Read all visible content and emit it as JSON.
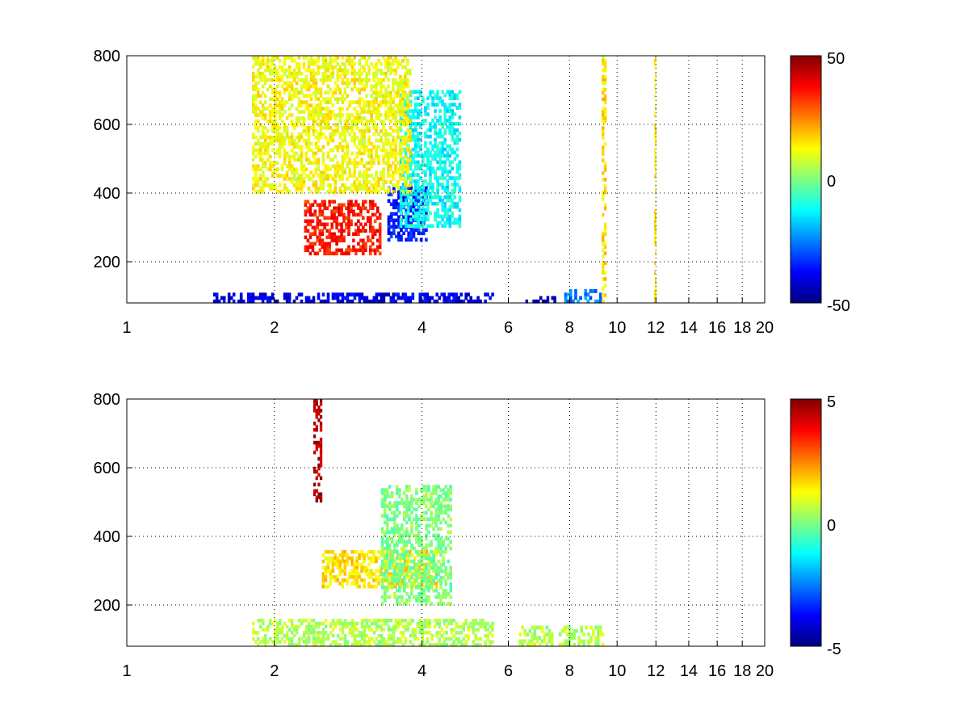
{
  "chart_data": [
    {
      "type": "heatmap",
      "title": "",
      "xlabel": "",
      "ylabel": "",
      "x_scale": "log",
      "xlim": [
        1,
        20
      ],
      "ylim": [
        80,
        800
      ],
      "x_ticks": [
        1,
        2,
        4,
        6,
        8,
        10,
        12,
        14,
        16,
        18,
        20
      ],
      "x_tick_labels": [
        "1",
        "2",
        "4",
        "6",
        "8",
        "10",
        "12",
        "14",
        "16",
        "18",
        "20"
      ],
      "y_ticks": [
        200,
        400,
        600,
        800
      ],
      "y_tick_labels": [
        "200",
        "400",
        "600",
        "800"
      ],
      "grid": true,
      "colormap": "jet",
      "colorbar": {
        "location": "right",
        "min": -50,
        "max": 50,
        "tick_values": [
          50,
          0,
          -50
        ],
        "tick_labels": [
          "50",
          "0",
          "-50"
        ]
      },
      "features": [
        {
          "x_range": [
            2.3,
            3.3
          ],
          "y_range": [
            220,
            380
          ],
          "value": 35
        },
        {
          "x_range": [
            3.4,
            4.1
          ],
          "y_range": [
            260,
            420
          ],
          "value": -35
        },
        {
          "x_range": [
            3.6,
            4.8
          ],
          "y_range": [
            300,
            700
          ],
          "value": -12
        },
        {
          "x_range": [
            1.8,
            3.8
          ],
          "y_range": [
            400,
            800
          ],
          "value": 12
        },
        {
          "x_range": [
            1.5,
            5.6
          ],
          "y_range": [
            80,
            110
          ],
          "value": -40
        },
        {
          "x_range": [
            6.5,
            7.5
          ],
          "y_range": [
            80,
            100
          ],
          "value": -45
        },
        {
          "x_range": [
            7.8,
            9.3
          ],
          "y_range": [
            80,
            120
          ],
          "value": -25
        },
        {
          "x_range": [
            9.3,
            9.5
          ],
          "y_range": [
            80,
            800
          ],
          "value": 15
        },
        {
          "x_range": [
            11.9,
            12.0
          ],
          "y_range": [
            80,
            800
          ],
          "value": 15
        }
      ]
    },
    {
      "type": "heatmap",
      "title": "",
      "xlabel": "",
      "ylabel": "",
      "x_scale": "log",
      "xlim": [
        1,
        20
      ],
      "ylim": [
        80,
        800
      ],
      "x_ticks": [
        1,
        2,
        4,
        6,
        8,
        10,
        12,
        14,
        16,
        18,
        20
      ],
      "x_tick_labels": [
        "1",
        "2",
        "4",
        "6",
        "8",
        "10",
        "12",
        "14",
        "16",
        "18",
        "20"
      ],
      "y_ticks": [
        200,
        400,
        600,
        800
      ],
      "y_tick_labels": [
        "200",
        "400",
        "600",
        "800"
      ],
      "grid": true,
      "colormap": "jet",
      "colorbar": {
        "location": "right",
        "min": -5,
        "max": 5,
        "tick_values": [
          5,
          0,
          -5
        ],
        "tick_labels": [
          "5",
          "0",
          "-5"
        ]
      },
      "features": [
        {
          "x_range": [
            2.5,
            4.3
          ],
          "y_range": [
            250,
            360
          ],
          "value": 1.5
        },
        {
          "x_range": [
            3.3,
            4.6
          ],
          "y_range": [
            200,
            550
          ],
          "value": 0
        },
        {
          "x_range": [
            1.8,
            5.6
          ],
          "y_range": [
            80,
            160
          ],
          "value": 0.5
        },
        {
          "x_range": [
            6.3,
            7.4
          ],
          "y_range": [
            80,
            140
          ],
          "value": 0.5
        },
        {
          "x_range": [
            7.6,
            9.4
          ],
          "y_range": [
            80,
            140
          ],
          "value": 0.5
        },
        {
          "x_range": [
            2.4,
            2.5
          ],
          "y_range": [
            500,
            800
          ],
          "value": 4.5
        }
      ]
    }
  ]
}
